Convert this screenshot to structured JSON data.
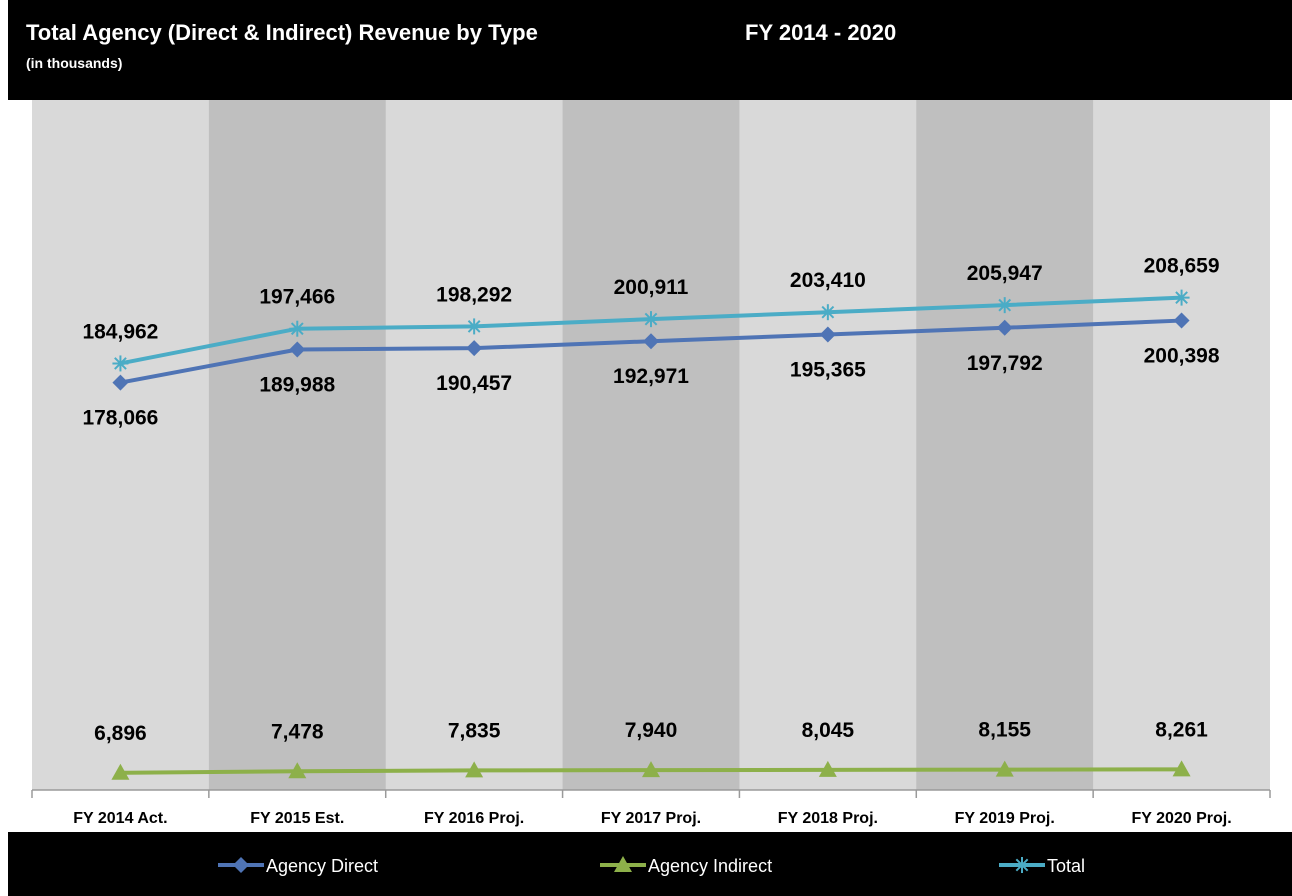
{
  "header": {
    "title": "Total Agency (Direct & Indirect) Revenue by Type",
    "subtitle": "(in thousands)",
    "period": "FY 2014 - 2020"
  },
  "colors": {
    "header_bg": "#000000",
    "plot_bg": "#d9d9d9",
    "band_bg": "#bfbfbf",
    "agency_direct": "#4f74b5",
    "agency_indirect": "#8db04a",
    "total": "#4bacc6"
  },
  "chart_data": {
    "type": "line",
    "title": "Total Agency (Direct & Indirect) Revenue by Type",
    "subtitle": "(in thousands)",
    "xlabel": "",
    "ylabel": "",
    "ylim": [
      0,
      230000
    ],
    "grid": false,
    "legend_position": "bottom",
    "categories": [
      "FY 2014 Act.",
      "FY 2015 Est.",
      "FY 2016 Proj.",
      "FY 2017 Proj.",
      "FY 2018 Proj.",
      "FY 2019 Proj.",
      "FY 2020 Proj."
    ],
    "series": [
      {
        "name": "Agency Direct",
        "marker": "diamond",
        "values": [
          178066,
          189988,
          190457,
          192971,
          195365,
          197792,
          200398
        ],
        "labels": [
          "178,066",
          "189,988",
          "190,457",
          "192,971",
          "195,365",
          "197,792",
          "200,398"
        ]
      },
      {
        "name": "Agency Indirect",
        "marker": "triangle",
        "values": [
          6896,
          7478,
          7835,
          7940,
          8045,
          8155,
          8261
        ],
        "labels": [
          "6,896",
          "7,478",
          "7,835",
          "7,940",
          "8,045",
          "8,155",
          "8,261"
        ]
      },
      {
        "name": "Total",
        "marker": "asterisk",
        "values": [
          184962,
          197466,
          198292,
          200911,
          203410,
          205947,
          208659
        ],
        "labels": [
          "184,962",
          "197,466",
          "198,292",
          "200,911",
          "203,410",
          "205,947",
          "208,659"
        ]
      }
    ]
  }
}
